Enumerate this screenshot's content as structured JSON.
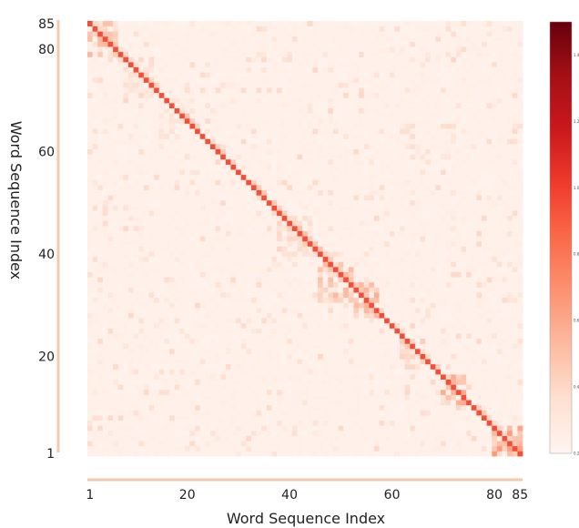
{
  "chart_data": {
    "type": "heatmap",
    "title": "",
    "xlabel": "Word Sequence Index",
    "ylabel": "Word Sequence Index",
    "n": 85,
    "x_ticks": [
      1,
      20,
      40,
      60,
      80,
      85
    ],
    "y_ticks": [
      1,
      20,
      40,
      60,
      80,
      85
    ],
    "xlim": [
      1,
      85
    ],
    "ylim": [
      1,
      85
    ],
    "colormap": [
      "#fff5f0",
      "#fee0d2",
      "#fcbba1",
      "#fc9272",
      "#fb6a4a",
      "#ef3b2c",
      "#cb181d",
      "#a50f15",
      "#67000d"
    ],
    "colorbar": {
      "min": 0.2,
      "max": 1.5,
      "ticks": [
        0.2,
        0.4,
        0.6,
        0.8,
        1.0,
        1.2,
        1.4
      ]
    },
    "diagonal_value": 0.95,
    "blocks": [
      {
        "x": [
          1,
          6
        ],
        "y": [
          79,
          85
        ],
        "value": 0.45
      },
      {
        "x": [
          8,
          13
        ],
        "y": [
          71,
          78
        ],
        "value": 0.35
      },
      {
        "x": [
          15,
          20
        ],
        "y": [
          63,
          70
        ],
        "value": 0.3
      },
      {
        "x": [
          38,
          44
        ],
        "y": [
          40,
          47
        ],
        "value": 0.38
      },
      {
        "x": [
          46,
          52
        ],
        "y": [
          31,
          38
        ],
        "value": 0.45
      },
      {
        "x": [
          53,
          57
        ],
        "y": [
          28,
          34
        ],
        "value": 0.5
      },
      {
        "x": [
          62,
          66
        ],
        "y": [
          18,
          23
        ],
        "value": 0.38
      },
      {
        "x": [
          70,
          74
        ],
        "y": [
          11,
          16
        ],
        "value": 0.5
      },
      {
        "x": [
          80,
          85
        ],
        "y": [
          1,
          6
        ],
        "value": 0.55
      }
    ],
    "background_value": 0.22,
    "noise_density": 0.08
  }
}
